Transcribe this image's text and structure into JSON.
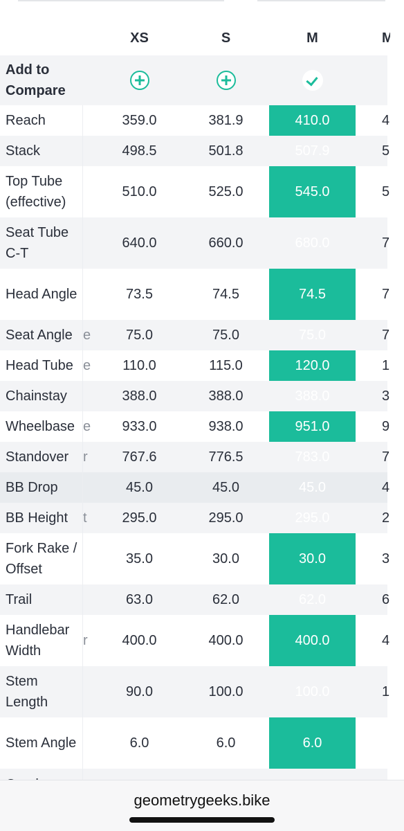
{
  "columns": [
    "XS",
    "S",
    "M",
    "M"
  ],
  "compare": {
    "label": "Add to Compare"
  },
  "rows": [
    {
      "label": "Reach",
      "ghost": "",
      "values": [
        "359.0",
        "381.9",
        "410.0",
        "4"
      ]
    },
    {
      "label": "Stack",
      "ghost": "",
      "values": [
        "498.5",
        "501.8",
        "507.9",
        "5"
      ]
    },
    {
      "label": "Top Tube (effective)",
      "ghost": "",
      "values": [
        "510.0",
        "525.0",
        "545.0",
        "5"
      ]
    },
    {
      "label": "Seat Tube C-T",
      "ghost": "",
      "values": [
        "640.0",
        "660.0",
        "680.0",
        "7"
      ]
    },
    {
      "label": "Head Angle",
      "ghost": "",
      "values": [
        "73.5",
        "74.5",
        "74.5",
        "7"
      ]
    },
    {
      "label": "Seat Angle",
      "ghost": "e",
      "values": [
        "75.0",
        "75.0",
        "75.0",
        "7"
      ]
    },
    {
      "label": "Head Tube",
      "ghost": "e",
      "values": [
        "110.0",
        "115.0",
        "120.0",
        "1"
      ]
    },
    {
      "label": "Chainstay",
      "ghost": "",
      "values": [
        "388.0",
        "388.0",
        "388.0",
        "3"
      ]
    },
    {
      "label": "Wheelbase",
      "ghost": "e",
      "values": [
        "933.0",
        "938.0",
        "951.0",
        "9"
      ]
    },
    {
      "label": "Standover",
      "ghost": "r",
      "values": [
        "767.6",
        "776.5",
        "783.0",
        "7"
      ]
    },
    {
      "label": "BB Drop",
      "ghost": "",
      "values": [
        "45.0",
        "45.0",
        "45.0",
        "4"
      ]
    },
    {
      "label": "BB Height",
      "ghost": "t",
      "values": [
        "295.0",
        "295.0",
        "295.0",
        "2"
      ]
    },
    {
      "label": "Fork Rake / Offset",
      "ghost": "",
      "values": [
        "35.0",
        "30.0",
        "30.0",
        "3"
      ]
    },
    {
      "label": "Trail",
      "ghost": "",
      "values": [
        "63.0",
        "62.0",
        "62.0",
        "6"
      ]
    },
    {
      "label": "Handlebar Width",
      "ghost": "r",
      "values": [
        "400.0",
        "400.0",
        "400.0",
        "4"
      ]
    },
    {
      "label": "Stem Length",
      "ghost": "",
      "values": [
        "90.0",
        "100.0",
        "100.0",
        "1"
      ]
    },
    {
      "label": "Stem Angle",
      "ghost": "",
      "values": [
        "6.0",
        "6.0",
        "6.0",
        ""
      ]
    },
    {
      "label": "Crank",
      "ghost": "",
      "values": [
        "",
        "",
        "",
        ""
      ]
    }
  ],
  "footer": {
    "url": "geometrygeeks.bike"
  },
  "colors": {
    "accent": "#1bbc9b",
    "accent_dark": "#17a285",
    "stripe": "#f3f4f6"
  },
  "icons": {
    "add": "plus-circle-icon",
    "selected": "check-circle-icon"
  }
}
